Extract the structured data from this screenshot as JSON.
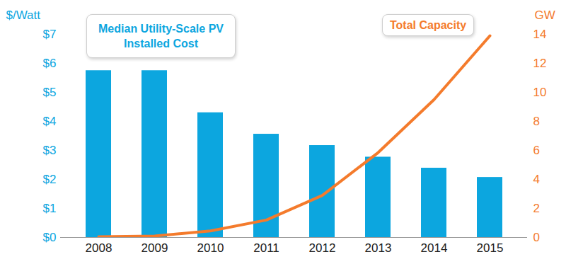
{
  "chart_data": {
    "type": "bar",
    "categories": [
      "2008",
      "2009",
      "2010",
      "2011",
      "2012",
      "2013",
      "2014",
      "2015"
    ],
    "series": [
      {
        "name": "Median Utility-Scale PV Installed Cost",
        "type": "bar",
        "color": "#0ca6df",
        "values": [
          5.75,
          5.75,
          4.3,
          3.56,
          3.17,
          2.77,
          2.39,
          2.07
        ]
      },
      {
        "name": "Total Capacity",
        "type": "line",
        "color": "#f47b2c",
        "axis": "y2",
        "values": [
          0.05,
          0.1,
          0.45,
          1.2,
          2.9,
          5.85,
          9.5,
          13.9
        ]
      }
    ],
    "ylabel": "$/Watt",
    "y2label": "GW",
    "ylim": [
      0,
      7
    ],
    "yticks": [
      {
        "value": 0,
        "label": "$0"
      },
      {
        "value": 1,
        "label": "$1"
      },
      {
        "value": 2,
        "label": "$2"
      },
      {
        "value": 3,
        "label": "$3"
      },
      {
        "value": 4,
        "label": "$4"
      },
      {
        "value": 5,
        "label": "$5"
      },
      {
        "value": 6,
        "label": "$6"
      },
      {
        "value": 7,
        "label": "$7"
      }
    ],
    "y2lim": [
      0,
      14
    ],
    "y2ticks": [
      0,
      2,
      4,
      6,
      8,
      10,
      12,
      14
    ],
    "legend": "top"
  }
}
